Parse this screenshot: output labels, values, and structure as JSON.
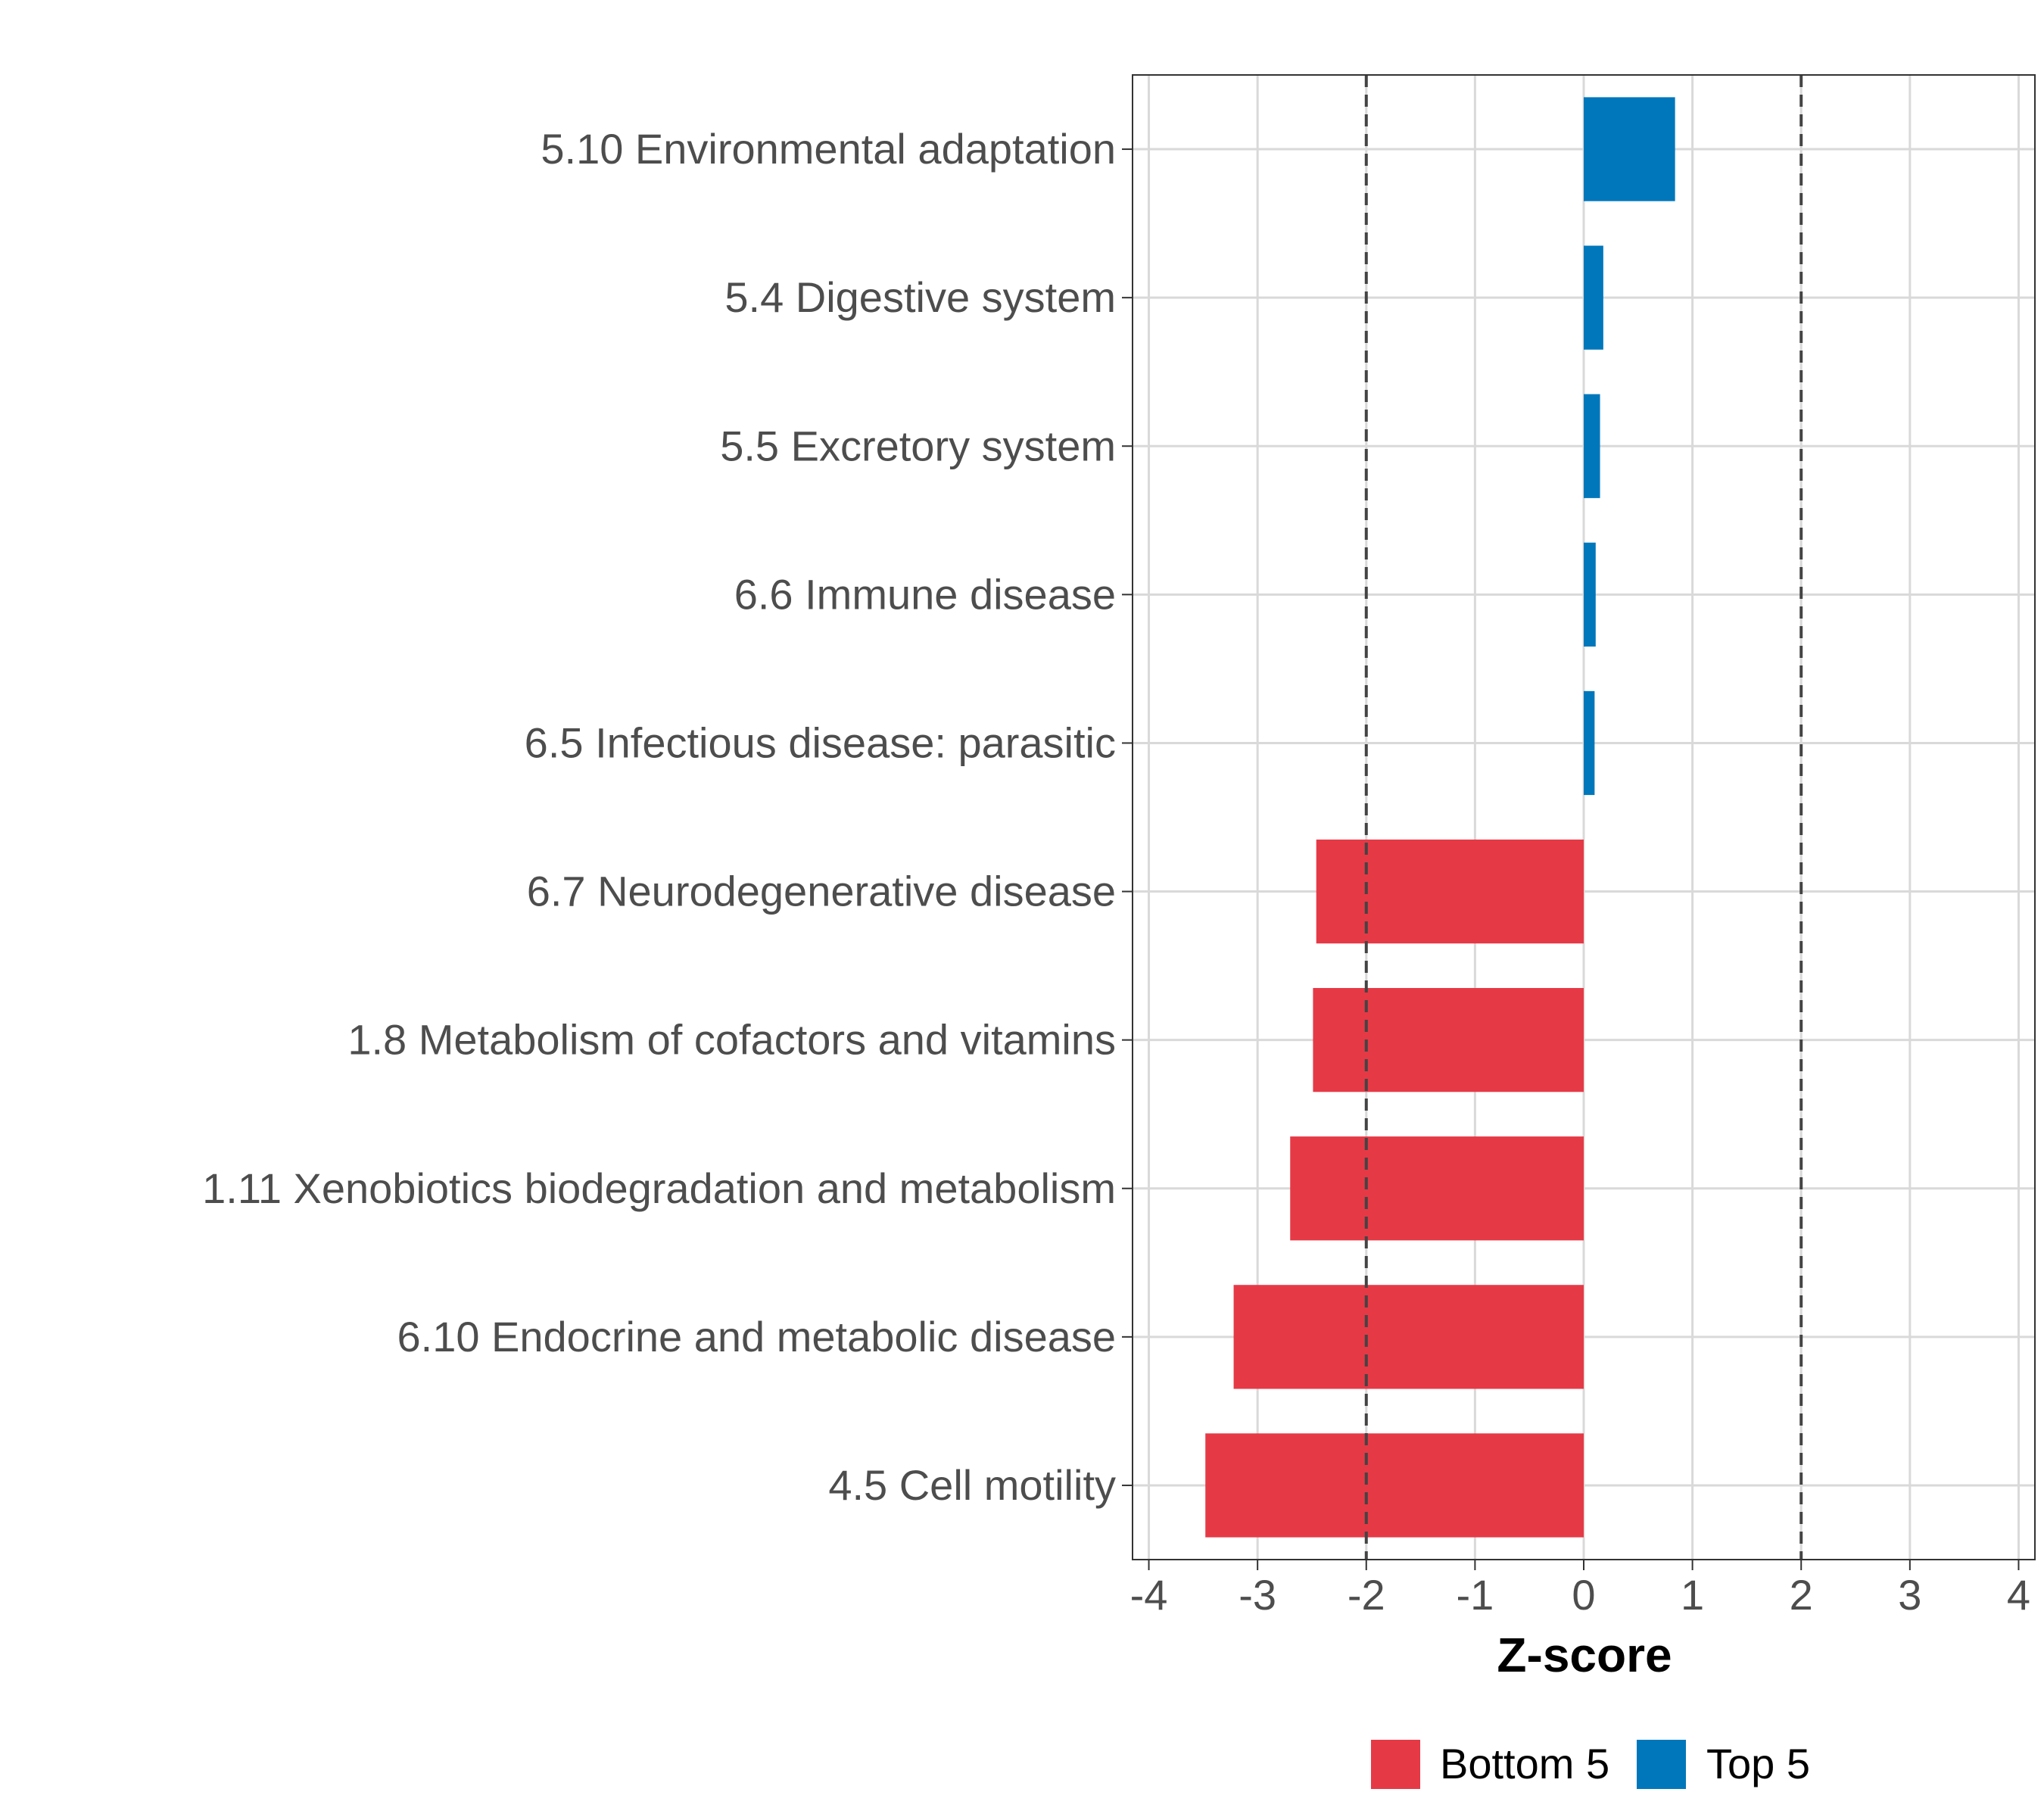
{
  "chart_data": {
    "type": "bar",
    "orientation": "horizontal",
    "title": "",
    "xlabel": "Z-score",
    "ylabel": "",
    "xlim": [
      -4.15,
      4.15
    ],
    "xticks": [
      -4,
      -3,
      -2,
      -1,
      0,
      1,
      2,
      3,
      4
    ],
    "xtick_labels": [
      "-4",
      "-3",
      "-2",
      "-1",
      "0",
      "1",
      "2",
      "3",
      "4"
    ],
    "reference_lines": [
      -2,
      2
    ],
    "grid": true,
    "categories": [
      "5.10 Environmental adaptation",
      "5.4 Digestive system",
      "5.5 Excretory system",
      "6.6 Immune disease",
      "6.5 Infectious disease: parasitic",
      "6.7 Neurodegenerative disease",
      "1.8 Metabolism of cofactors and vitamins",
      "1.11 Xenobiotics biodegradation and metabolism",
      "6.10 Endocrine and metabolic disease",
      "4.5 Cell motility"
    ],
    "values": [
      0.84,
      0.18,
      0.15,
      0.11,
      0.1,
      -2.46,
      -2.49,
      -2.7,
      -3.22,
      -3.48
    ],
    "groups": [
      "Top 5",
      "Top 5",
      "Top 5",
      "Top 5",
      "Top 5",
      "Bottom 5",
      "Bottom 5",
      "Bottom 5",
      "Bottom 5",
      "Bottom 5"
    ],
    "legend": {
      "position": "bottom",
      "entries": [
        {
          "label": "Bottom 5",
          "color": "#E63946"
        },
        {
          "label": "Top 5",
          "color": "#0077BB"
        }
      ]
    }
  }
}
